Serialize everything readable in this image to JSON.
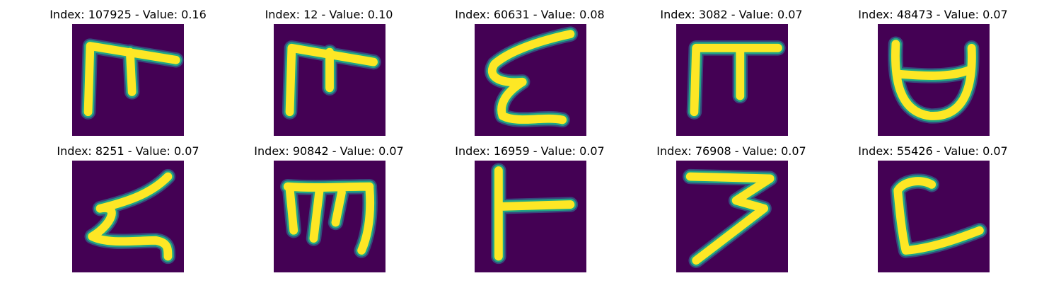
{
  "colors": {
    "background": "#440154",
    "glyph_core": "#fde725",
    "glyph_edge": "#21a585",
    "glyph_halo": "#31688e"
  },
  "panels": [
    {
      "title": "Index: 107925 - Value: 0.16"
    },
    {
      "title": "Index: 12 - Value: 0.10"
    },
    {
      "title": "Index: 60631 - Value: 0.08"
    },
    {
      "title": "Index: 3082 - Value: 0.07"
    },
    {
      "title": "Index: 48473 - Value: 0.07"
    },
    {
      "title": "Index: 8251 - Value: 0.07"
    },
    {
      "title": "Index: 90842 - Value: 0.07"
    },
    {
      "title": "Index: 16959 - Value: 0.07"
    },
    {
      "title": "Index: 76908 - Value: 0.07"
    },
    {
      "title": "Index: 55426 - Value: 0.07"
    }
  ]
}
